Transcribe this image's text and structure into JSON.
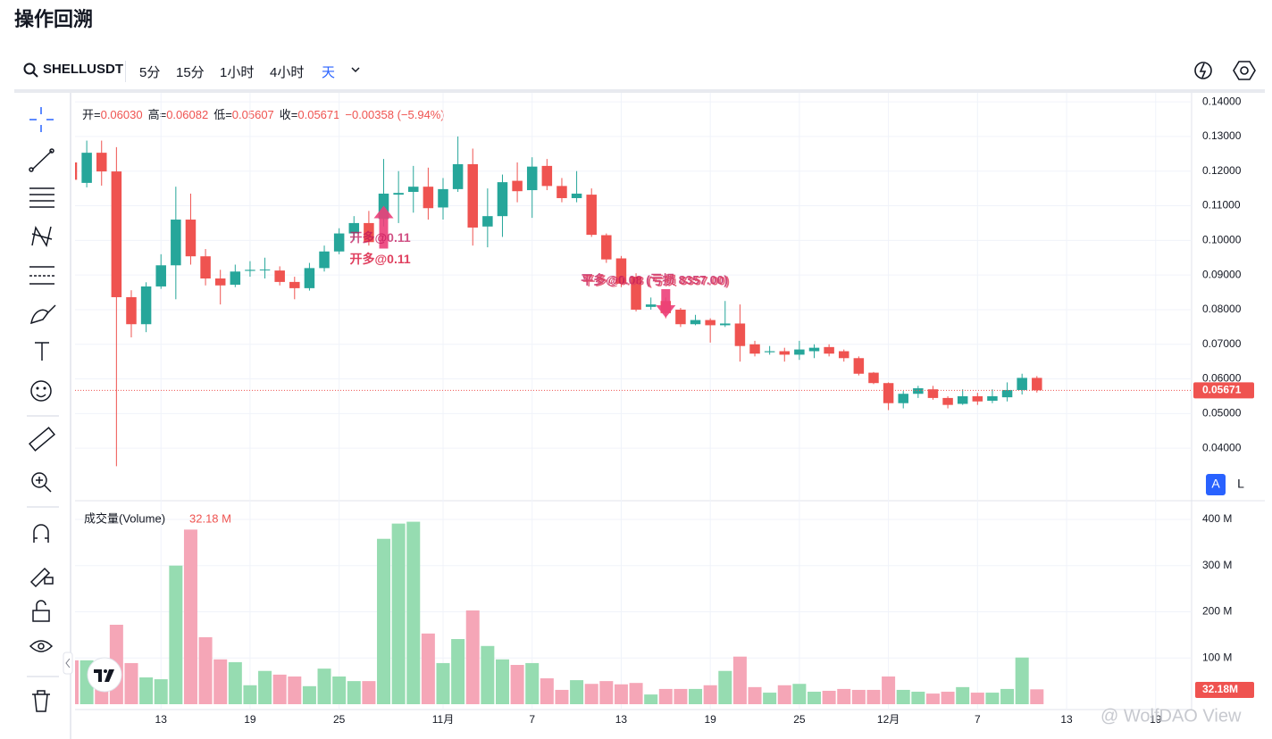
{
  "title": "操作回溯",
  "toolbar": {
    "symbol": "SHELLUSDT",
    "intervals": [
      "5分",
      "15分",
      "1小时",
      "4小时",
      "天"
    ],
    "active": 4
  },
  "ohlc_legend": {
    "items": [
      {
        "key": "开=",
        "value": "0.06030"
      },
      {
        "key": "高=",
        "value": "0.06082"
      },
      {
        "key": "低=",
        "value": "0.05607"
      },
      {
        "key": "收=",
        "value": "0.05671"
      }
    ],
    "change": "−0.00358 (−5.94%)"
  },
  "scale_buttons": [
    "A",
    "L"
  ],
  "watermark": "@ WolfDAO View",
  "chart_data": {
    "type": "candlestick",
    "open": [
      0.1225,
      0.1166,
      0.1253,
      0.1199,
      0.0836,
      0.0758,
      0.0867,
      0.0928,
      0.106,
      0.0954,
      0.089,
      0.0872,
      0.0912,
      0.0914,
      0.0913,
      0.088,
      0.0862,
      0.092,
      0.0968,
      0.102,
      0.105,
      0.1062,
      0.1132,
      0.114,
      0.1155,
      0.1095,
      0.1148,
      0.122,
      0.104,
      0.107,
      0.1172,
      0.1145,
      0.1215,
      0.1157,
      0.1122,
      0.1132,
      0.1015,
      0.0948,
      0.0895,
      0.0808,
      0.0825,
      0.08,
      0.0758,
      0.077,
      0.0755,
      0.076,
      0.07,
      0.0677,
      0.068,
      0.067,
      0.068,
      0.0692,
      0.068,
      0.066,
      0.0618,
      0.0588,
      0.053,
      0.0557,
      0.057,
      0.0545,
      0.0528,
      0.055,
      0.0537,
      0.0547,
      0.0568,
      0.0603
    ],
    "high": [
      0.1245,
      0.1288,
      0.1288,
      0.1269,
      0.0856,
      0.0879,
      0.096,
      0.1155,
      0.1135,
      0.0975,
      0.0915,
      0.093,
      0.094,
      0.095,
      0.0925,
      0.0895,
      0.0935,
      0.0985,
      0.1035,
      0.107,
      0.1085,
      0.1235,
      0.12,
      0.1215,
      0.121,
      0.118,
      0.13,
      0.1265,
      0.115,
      0.119,
      0.1225,
      0.124,
      0.1235,
      0.118,
      0.12,
      0.115,
      0.102,
      0.0955,
      0.0905,
      0.0835,
      0.0835,
      0.0805,
      0.0785,
      0.0775,
      0.0825,
      0.0815,
      0.071,
      0.0695,
      0.069,
      0.071,
      0.07,
      0.07,
      0.0685,
      0.0665,
      0.062,
      0.059,
      0.0565,
      0.058,
      0.058,
      0.055,
      0.057,
      0.056,
      0.057,
      0.059,
      0.0615,
      0.06082
    ],
    "low": [
      0.1165,
      0.1153,
      0.1158,
      0.0348,
      0.072,
      0.0735,
      0.086,
      0.083,
      0.093,
      0.087,
      0.0815,
      0.0865,
      0.0895,
      0.089,
      0.087,
      0.083,
      0.0855,
      0.091,
      0.096,
      0.1,
      0.0985,
      0.104,
      0.105,
      0.108,
      0.106,
      0.106,
      0.114,
      0.0985,
      0.098,
      0.101,
      0.111,
      0.1065,
      0.1145,
      0.111,
      0.111,
      0.101,
      0.0935,
      0.0865,
      0.0795,
      0.08,
      0.0775,
      0.075,
      0.0755,
      0.0705,
      0.075,
      0.065,
      0.0665,
      0.067,
      0.065,
      0.0655,
      0.066,
      0.0665,
      0.065,
      0.061,
      0.0585,
      0.051,
      0.0515,
      0.0545,
      0.054,
      0.0515,
      0.0525,
      0.0525,
      0.053,
      0.0535,
      0.0555,
      0.05607
    ],
    "close": [
      0.1175,
      0.1253,
      0.1199,
      0.0836,
      0.0758,
      0.0867,
      0.0928,
      0.106,
      0.0954,
      0.089,
      0.087,
      0.091,
      0.0915,
      0.0916,
      0.088,
      0.0862,
      0.092,
      0.0968,
      0.102,
      0.105,
      0.0995,
      0.1135,
      0.1137,
      0.1155,
      0.1093,
      0.1148,
      0.122,
      0.1037,
      0.107,
      0.1168,
      0.1142,
      0.1213,
      0.1157,
      0.1122,
      0.1135,
      0.1016,
      0.0945,
      0.0875,
      0.08,
      0.0815,
      0.079,
      0.0758,
      0.077,
      0.0755,
      0.076,
      0.0695,
      0.0673,
      0.068,
      0.067,
      0.0685,
      0.069,
      0.0673,
      0.066,
      0.0615,
      0.0588,
      0.053,
      0.0557,
      0.0573,
      0.0545,
      0.0525,
      0.055,
      0.0535,
      0.055,
      0.0568,
      0.0603,
      0.05671
    ],
    "volume": [
      95,
      95,
      89,
      172,
      89,
      58,
      54,
      300,
      378,
      145,
      97,
      91,
      41,
      72,
      64,
      60,
      39,
      77,
      60,
      50,
      50,
      358,
      391,
      395,
      153,
      89,
      141,
      203,
      126,
      97,
      85,
      89,
      56,
      31,
      52,
      44,
      50,
      43,
      46,
      21,
      33,
      33,
      33,
      41,
      72,
      103,
      37,
      25,
      41,
      44,
      27,
      29,
      33,
      31,
      31,
      60,
      31,
      27,
      23,
      27,
      37,
      25,
      25,
      33,
      101,
      32.18
    ],
    "ylim": [
      0.0251,
      0.1426
    ],
    "yticks": [
      {
        "value": 0.04,
        "label": "0.04000"
      },
      {
        "value": 0.05,
        "label": "0.05000"
      },
      {
        "value": 0.06,
        "label": "0.06000"
      },
      {
        "value": 0.07,
        "label": "0.07000"
      },
      {
        "value": 0.08,
        "label": "0.08000"
      },
      {
        "value": 0.09,
        "label": "0.09000"
      },
      {
        "value": 0.1,
        "label": "0.10000"
      },
      {
        "value": 0.11,
        "label": "0.11000"
      },
      {
        "value": 0.12,
        "label": "0.12000"
      },
      {
        "value": 0.13,
        "label": "0.13000"
      },
      {
        "value": 0.14,
        "label": "0.14000"
      }
    ],
    "y2lim": [
      0,
      438.6
    ],
    "y2ticks": [
      {
        "value": 100,
        "label": "100 M"
      },
      {
        "value": 200,
        "label": "200 M"
      },
      {
        "value": 300,
        "label": "300 M"
      },
      {
        "value": 400,
        "label": "400 M"
      }
    ],
    "xticks": [
      {
        "value": 6,
        "label": "13"
      },
      {
        "value": 12,
        "label": "19"
      },
      {
        "value": 18,
        "label": "25"
      },
      {
        "value": 25,
        "label": "11月"
      },
      {
        "value": 31,
        "label": "7"
      },
      {
        "value": 37,
        "label": "13"
      },
      {
        "value": 43,
        "label": "19"
      },
      {
        "value": 49,
        "label": "25"
      },
      {
        "value": 55,
        "label": "12月"
      },
      {
        "value": 61,
        "label": "7"
      },
      {
        "value": 67,
        "label": "13"
      },
      {
        "value": 73,
        "label": "19"
      }
    ],
    "grid": true,
    "up_color": "#26a69a",
    "down_color": "#ef5350",
    "vol_up_color": "#96dcb1",
    "vol_down_color": "#f5a6b7",
    "last_price_label": "0.05671",
    "last_volume_label": "32.18M",
    "volume_title": "成交量(Volume)",
    "volume_value": "32.18 M",
    "annotations": [
      {
        "side": "buy",
        "index": 21,
        "price": 0.11,
        "texts": [
          "开多@0.11",
          "开多@0.11"
        ]
      },
      {
        "side": "sell",
        "index": 40,
        "price": 0.08,
        "texts": [
          "平多@0.08 (亏损 8357.00)",
          "平多@0.08 (亏损 8357.00)"
        ]
      }
    ]
  }
}
